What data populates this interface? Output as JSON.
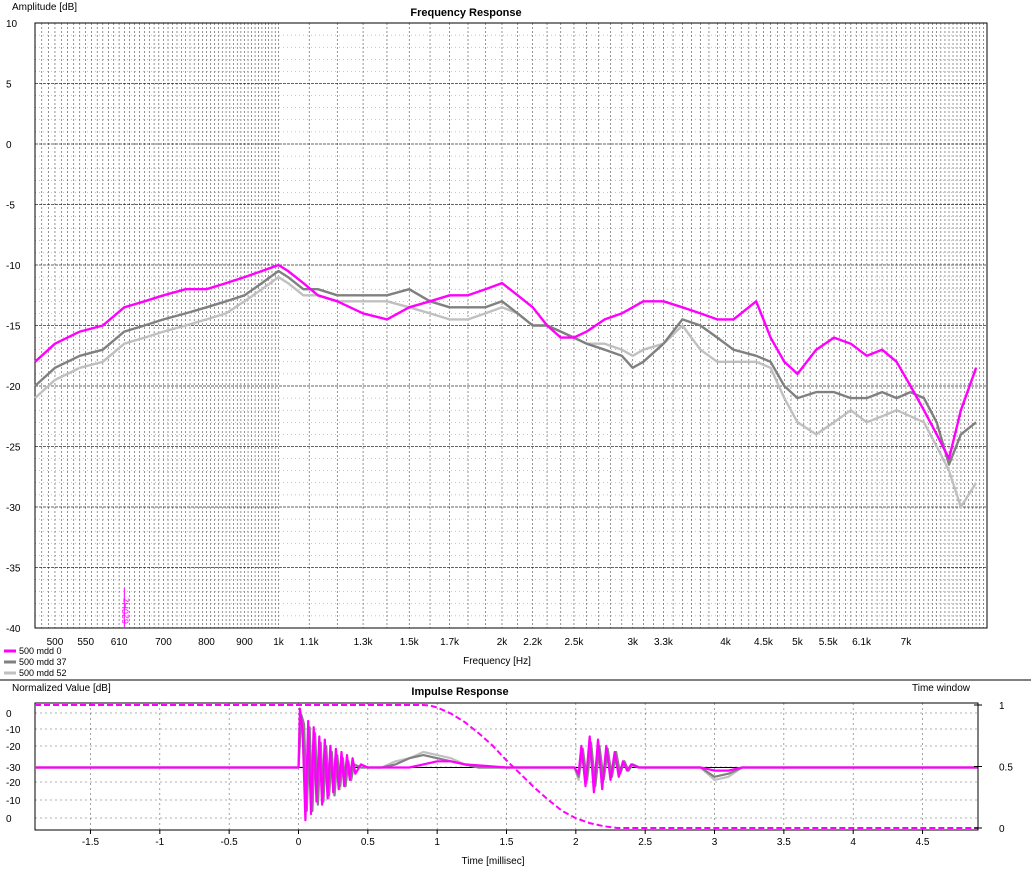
{
  "chart_data": [
    {
      "type": "line",
      "title": "Frequency Response",
      "ylabel": "Amplitude [dB]",
      "xlabel": "Frequency [Hz]",
      "x_scale": "log",
      "xlim": [
        470,
        9000
      ],
      "ylim": [
        -40,
        10
      ],
      "yticks": [
        10,
        5,
        0,
        -5,
        -10,
        -15,
        -20,
        -25,
        -30,
        -35,
        -40
      ],
      "ytick_labels": [
        "10",
        "5",
        "0",
        "-5",
        "-10",
        "-15",
        "-20",
        "-25",
        "-30",
        "-35",
        "-40"
      ],
      "xticks": [
        500,
        550,
        610,
        700,
        800,
        900,
        1000,
        1100,
        1300,
        1500,
        1700,
        2000,
        2200,
        2500,
        3000,
        3300,
        4000,
        4500,
        5000,
        5500,
        6100,
        7000
      ],
      "xtick_labels": [
        "500",
        "550",
        "610",
        "700",
        "800",
        "900",
        "1k",
        "1.1k",
        "1.3k",
        "1.5k",
        "1.7k",
        "2k",
        "2.2k",
        "2.5k",
        "3k",
        "3.3k",
        "4k",
        "4.5k",
        "5k",
        "5.5k",
        "6.1k",
        "7k"
      ],
      "marker": {
        "x": 620,
        "label": "620Hz"
      },
      "grid": true,
      "legend": "bottom-left",
      "series": [
        {
          "name": "500 mdd 0",
          "color": "#ff00ff",
          "x": [
            470,
            500,
            540,
            580,
            620,
            660,
            700,
            750,
            800,
            850,
            900,
            950,
            1000,
            1030,
            1080,
            1130,
            1200,
            1300,
            1400,
            1500,
            1600,
            1700,
            1800,
            1900,
            2000,
            2100,
            2200,
            2300,
            2400,
            2500,
            2600,
            2750,
            2900,
            3000,
            3100,
            3300,
            3500,
            3700,
            3900,
            4100,
            4400,
            4600,
            4800,
            5000,
            5300,
            5600,
            5900,
            6200,
            6500,
            6800,
            7100,
            7400,
            7700,
            8000,
            8300,
            8700
          ],
          "y": [
            -18,
            -16.5,
            -15.5,
            -15,
            -13.5,
            -13,
            -12.5,
            -12,
            -12,
            -11.5,
            -11,
            -10.5,
            -10,
            -10.5,
            -11.5,
            -12.5,
            -13,
            -14,
            -14.5,
            -13.5,
            -13,
            -12.5,
            -12.5,
            -12,
            -11.5,
            -12.5,
            -13.5,
            -15,
            -16,
            -16,
            -15.5,
            -14.5,
            -14,
            -13.5,
            -13,
            -13,
            -13.5,
            -14,
            -14.5,
            -14.5,
            -13,
            -16,
            -18,
            -19,
            -17,
            -16,
            -16.5,
            -17.5,
            -17,
            -18,
            -20,
            -22,
            -24,
            -26,
            -22,
            -18.5
          ]
        },
        {
          "name": "500 mdd 37",
          "color": "#808080",
          "x": [
            470,
            500,
            540,
            580,
            620,
            660,
            700,
            750,
            800,
            850,
            900,
            950,
            1000,
            1030,
            1080,
            1130,
            1200,
            1300,
            1400,
            1500,
            1600,
            1700,
            1800,
            1900,
            2000,
            2100,
            2200,
            2300,
            2400,
            2500,
            2600,
            2750,
            2900,
            3000,
            3100,
            3300,
            3500,
            3700,
            3900,
            4100,
            4400,
            4600,
            4800,
            5000,
            5300,
            5600,
            5900,
            6200,
            6500,
            6800,
            7100,
            7400,
            7700,
            8000,
            8300,
            8700
          ],
          "y": [
            -20,
            -18.5,
            -17.5,
            -17,
            -15.5,
            -15,
            -14.5,
            -14,
            -13.5,
            -13,
            -12.5,
            -11.5,
            -10.5,
            -11,
            -12,
            -12,
            -12.5,
            -12.5,
            -12.5,
            -12,
            -13,
            -13.5,
            -13.5,
            -13.5,
            -13,
            -14,
            -15,
            -15,
            -15.5,
            -16,
            -16.5,
            -17,
            -17.5,
            -18.5,
            -18,
            -16.5,
            -14.5,
            -15,
            -16,
            -17,
            -17.5,
            -18,
            -20,
            -21,
            -20.5,
            -20.5,
            -21,
            -21,
            -20.5,
            -21,
            -20.5,
            -21,
            -23,
            -26.5,
            -24,
            -23
          ]
        },
        {
          "name": "500 mdd 52",
          "color": "#c0c0c0",
          "x": [
            470,
            500,
            540,
            580,
            620,
            660,
            700,
            750,
            800,
            850,
            900,
            950,
            1000,
            1030,
            1080,
            1130,
            1200,
            1300,
            1400,
            1500,
            1600,
            1700,
            1800,
            1900,
            2000,
            2100,
            2200,
            2300,
            2400,
            2500,
            2600,
            2750,
            2900,
            3000,
            3100,
            3300,
            3500,
            3700,
            3900,
            4100,
            4400,
            4600,
            4800,
            5000,
            5300,
            5600,
            5900,
            6200,
            6500,
            6800,
            7100,
            7400,
            7700,
            8000,
            8300,
            8700
          ],
          "y": [
            -21,
            -19.5,
            -18.5,
            -18,
            -16.5,
            -16,
            -15.5,
            -15,
            -14.5,
            -14,
            -13,
            -12,
            -11,
            -11.5,
            -12.5,
            -12.5,
            -13,
            -13,
            -13,
            -13.5,
            -14,
            -14.5,
            -14.5,
            -14,
            -13.5,
            -14,
            -15,
            -15,
            -15.5,
            -16,
            -16.5,
            -16.5,
            -17,
            -17.5,
            -17,
            -16.5,
            -15,
            -17,
            -18,
            -18,
            -18,
            -18.5,
            -21,
            -23,
            -24,
            -23,
            -22,
            -23,
            -22.5,
            -22,
            -22.5,
            -23,
            -25,
            -27,
            -30,
            -28
          ]
        }
      ]
    },
    {
      "type": "line",
      "title": "Impulse Response",
      "ylabel": "Normalized Value [dB]",
      "xlabel": "Time [millisec]",
      "y2label": "Time window",
      "xlim": [
        -1.9,
        4.9
      ],
      "xticks": [
        -1.5,
        -1,
        -0.5,
        0,
        0.5,
        1,
        1.5,
        2,
        2.5,
        3,
        3.5,
        4,
        4.5
      ],
      "xtick_labels": [
        "-1.5",
        "-1",
        "-0.5",
        "0",
        "0.5",
        "1",
        "1.5",
        "2",
        "2.5",
        "3",
        "3.5",
        "4",
        "4.5"
      ],
      "ytick_labels": [
        "0",
        "-10",
        "-20",
        "-30",
        "-20",
        "-10",
        "0"
      ],
      "y2tick_labels": [
        "1",
        "0.5",
        "0"
      ],
      "grid": true,
      "window": {
        "x": [
          -1.9,
          0.9,
          0.95,
          1.0,
          1.1,
          1.2,
          1.3,
          1.4,
          1.5,
          1.6,
          1.7,
          1.8,
          1.9,
          2.0,
          2.1,
          2.2,
          2.3,
          4.9
        ],
        "y": [
          1,
          1,
          0.995,
          0.98,
          0.93,
          0.86,
          0.77,
          0.67,
          0.55,
          0.44,
          0.33,
          0.23,
          0.14,
          0.08,
          0.04,
          0.015,
          0,
          0
        ]
      },
      "series": [
        {
          "name": "500 mdd 0",
          "color": "#ff00ff",
          "x": [
            -1.9,
            0,
            0.01,
            0.03,
            0.05,
            0.07,
            0.09,
            0.11,
            0.13,
            0.15,
            0.17,
            0.19,
            0.21,
            0.23,
            0.25,
            0.27,
            0.29,
            0.31,
            0.33,
            0.35,
            0.37,
            0.39,
            0.41,
            0.45,
            0.5,
            0.8,
            0.9,
            1.0,
            1.1,
            1.2,
            1.5,
            1.99,
            2.02,
            2.04,
            2.07,
            2.1,
            2.13,
            2.16,
            2.19,
            2.22,
            2.25,
            2.28,
            2.31,
            2.34,
            2.37,
            2.4,
            2.45,
            2.9,
            3.0,
            3.1,
            3.2,
            4.9
          ],
          "y": [
            0,
            0,
            0.95,
            0.6,
            -0.85,
            0.75,
            -0.75,
            0.65,
            -0.55,
            0.5,
            -0.6,
            0.45,
            -0.5,
            0.35,
            -0.4,
            0.3,
            -0.35,
            0.25,
            -0.3,
            0.2,
            -0.2,
            0.15,
            -0.1,
            0.05,
            0,
            0,
            0.05,
            0.1,
            0.1,
            0.05,
            0,
            0,
            -0.1,
            0.35,
            -0.3,
            0.5,
            -0.4,
            0.45,
            -0.35,
            0.35,
            -0.2,
            0.25,
            -0.15,
            0.1,
            -0.05,
            0.05,
            0,
            0,
            -0.05,
            -0.05,
            0,
            0
          ]
        },
        {
          "name": "500 mdd 37",
          "color": "#808080",
          "x": [
            -1.9,
            0,
            0.02,
            0.04,
            0.06,
            0.08,
            0.1,
            0.12,
            0.14,
            0.16,
            0.18,
            0.2,
            0.22,
            0.24,
            0.26,
            0.28,
            0.3,
            0.32,
            0.34,
            0.36,
            0.38,
            0.4,
            0.45,
            0.6,
            0.7,
            0.8,
            0.9,
            1.0,
            1.1,
            1.2,
            1.3,
            1.99,
            2.02,
            2.05,
            2.08,
            2.11,
            2.14,
            2.17,
            2.2,
            2.23,
            2.26,
            2.29,
            2.32,
            2.35,
            2.38,
            2.41,
            2.46,
            2.9,
            3.0,
            3.1,
            3.2,
            4.9
          ],
          "y": [
            0,
            0,
            0.85,
            0.7,
            -0.7,
            0.65,
            -0.7,
            0.55,
            -0.6,
            0.4,
            -0.55,
            0.35,
            -0.45,
            0.25,
            -0.45,
            0.2,
            -0.3,
            0.15,
            -0.3,
            0.1,
            -0.2,
            0.05,
            0,
            0,
            0.05,
            0.15,
            0.2,
            0.15,
            0.1,
            0.05,
            0,
            0,
            -0.15,
            0.3,
            -0.2,
            0.4,
            -0.3,
            0.35,
            -0.2,
            0.3,
            -0.15,
            0.25,
            -0.1,
            0.1,
            -0.05,
            0.05,
            0,
            0,
            -0.15,
            -0.1,
            0,
            0
          ]
        },
        {
          "name": "500 mdd 52",
          "color": "#c0c0c0",
          "x": [
            -1.9,
            0,
            0.02,
            0.04,
            0.06,
            0.08,
            0.1,
            0.12,
            0.14,
            0.16,
            0.18,
            0.2,
            0.22,
            0.24,
            0.26,
            0.28,
            0.3,
            0.32,
            0.34,
            0.36,
            0.38,
            0.4,
            0.45,
            0.6,
            0.7,
            0.8,
            0.9,
            1.0,
            1.1,
            1.2,
            1.3,
            1.99,
            2.02,
            2.05,
            2.08,
            2.11,
            2.14,
            2.17,
            2.2,
            2.23,
            2.26,
            2.29,
            2.32,
            2.35,
            2.38,
            2.41,
            2.46,
            2.9,
            3.0,
            3.1,
            3.2,
            4.9
          ],
          "y": [
            0,
            0,
            0.8,
            0.65,
            -0.65,
            0.6,
            -0.65,
            0.5,
            -0.55,
            0.35,
            -0.5,
            0.3,
            -0.5,
            0.2,
            -0.45,
            0.15,
            -0.35,
            0.1,
            -0.25,
            0.05,
            -0.15,
            0.05,
            0,
            0,
            0.1,
            0.15,
            0.25,
            0.2,
            0.15,
            0.05,
            0,
            0,
            -0.2,
            0.25,
            -0.25,
            0.3,
            -0.3,
            0.3,
            -0.2,
            0.25,
            -0.15,
            0.2,
            -0.1,
            0.1,
            -0.05,
            0.05,
            0,
            0,
            -0.2,
            -0.15,
            0,
            0
          ]
        }
      ]
    }
  ]
}
